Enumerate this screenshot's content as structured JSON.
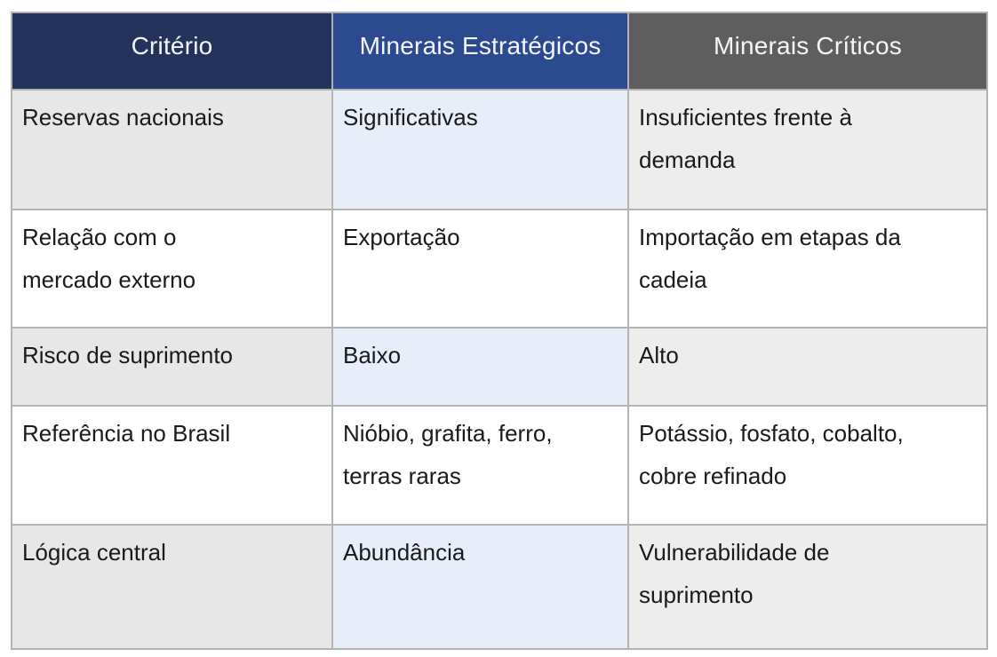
{
  "colors": {
    "header_criterio_bg": "#22345c",
    "header_estrategicos_bg": "#2b4a8f",
    "header_criticos_bg": "#5e5e5e",
    "header_text": "#f4f6f9",
    "row_shade_gray_left": "#e7e7e7",
    "row_shade_blue": "#e7eef9",
    "row_shade_gray_right": "#ededee",
    "body_text": "#1a1a1a",
    "border": "#b3b3b3"
  },
  "table": {
    "headers": [
      {
        "label": "Critério"
      },
      {
        "label": "Minerais Estratégicos"
      },
      {
        "label": "Minerais Críticos"
      }
    ],
    "rows": [
      {
        "criterio": "Reservas nacionais",
        "estrategicos": "Significativas",
        "criticos": "Insuficientes frente à\ndemanda"
      },
      {
        "criterio": "Relação com o\nmercado externo",
        "estrategicos": "Exportação",
        "criticos": "Importação em etapas da\ncadeia"
      },
      {
        "criterio": "Risco de suprimento",
        "estrategicos": "Baixo",
        "criticos": "Alto"
      },
      {
        "criterio": "Referência no Brasil",
        "estrategicos": "Nióbio, grafita, ferro,\nterras raras",
        "criticos": "Potássio, fosfato, cobalto,\ncobre refinado"
      },
      {
        "criterio": "Lógica central",
        "estrategicos": "Abundância",
        "criticos": "Vulnerabilidade de\nsuprimento"
      }
    ]
  }
}
